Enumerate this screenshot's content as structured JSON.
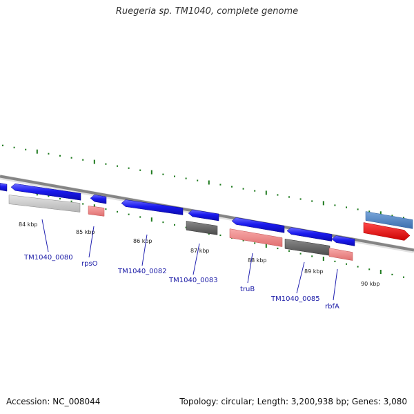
{
  "title": "Ruegeria sp. TM1040, complete genome",
  "footer": {
    "accession": "Accession: NC_008044",
    "summary": "Topology: circular; Length: 3,200,938 bp; Genes: 3,080"
  },
  "colors": {
    "background": "#ffffff",
    "backbone": "#808080",
    "tick": "#1e7a1e",
    "gene": "#1515e6",
    "cds_light": "#c8c8c8",
    "cds_pink": "#f08080",
    "cds_dark": "#5a5a5a",
    "highlight_steel": "#4a80c0",
    "highlight_red": "#ee0000",
    "label": "#1a1aa6"
  },
  "kbp_labels": [
    "84 kbp",
    "85 kbp",
    "86 kbp",
    "87 kbp",
    "88 kbp",
    "89 kbp",
    "90 kbp"
  ],
  "gene_labels": [
    "TM1040_0080",
    "rpsO",
    "TM1040_0082",
    "TM1040_0083",
    "truB",
    "TM1040_0085",
    "rbfA"
  ]
}
